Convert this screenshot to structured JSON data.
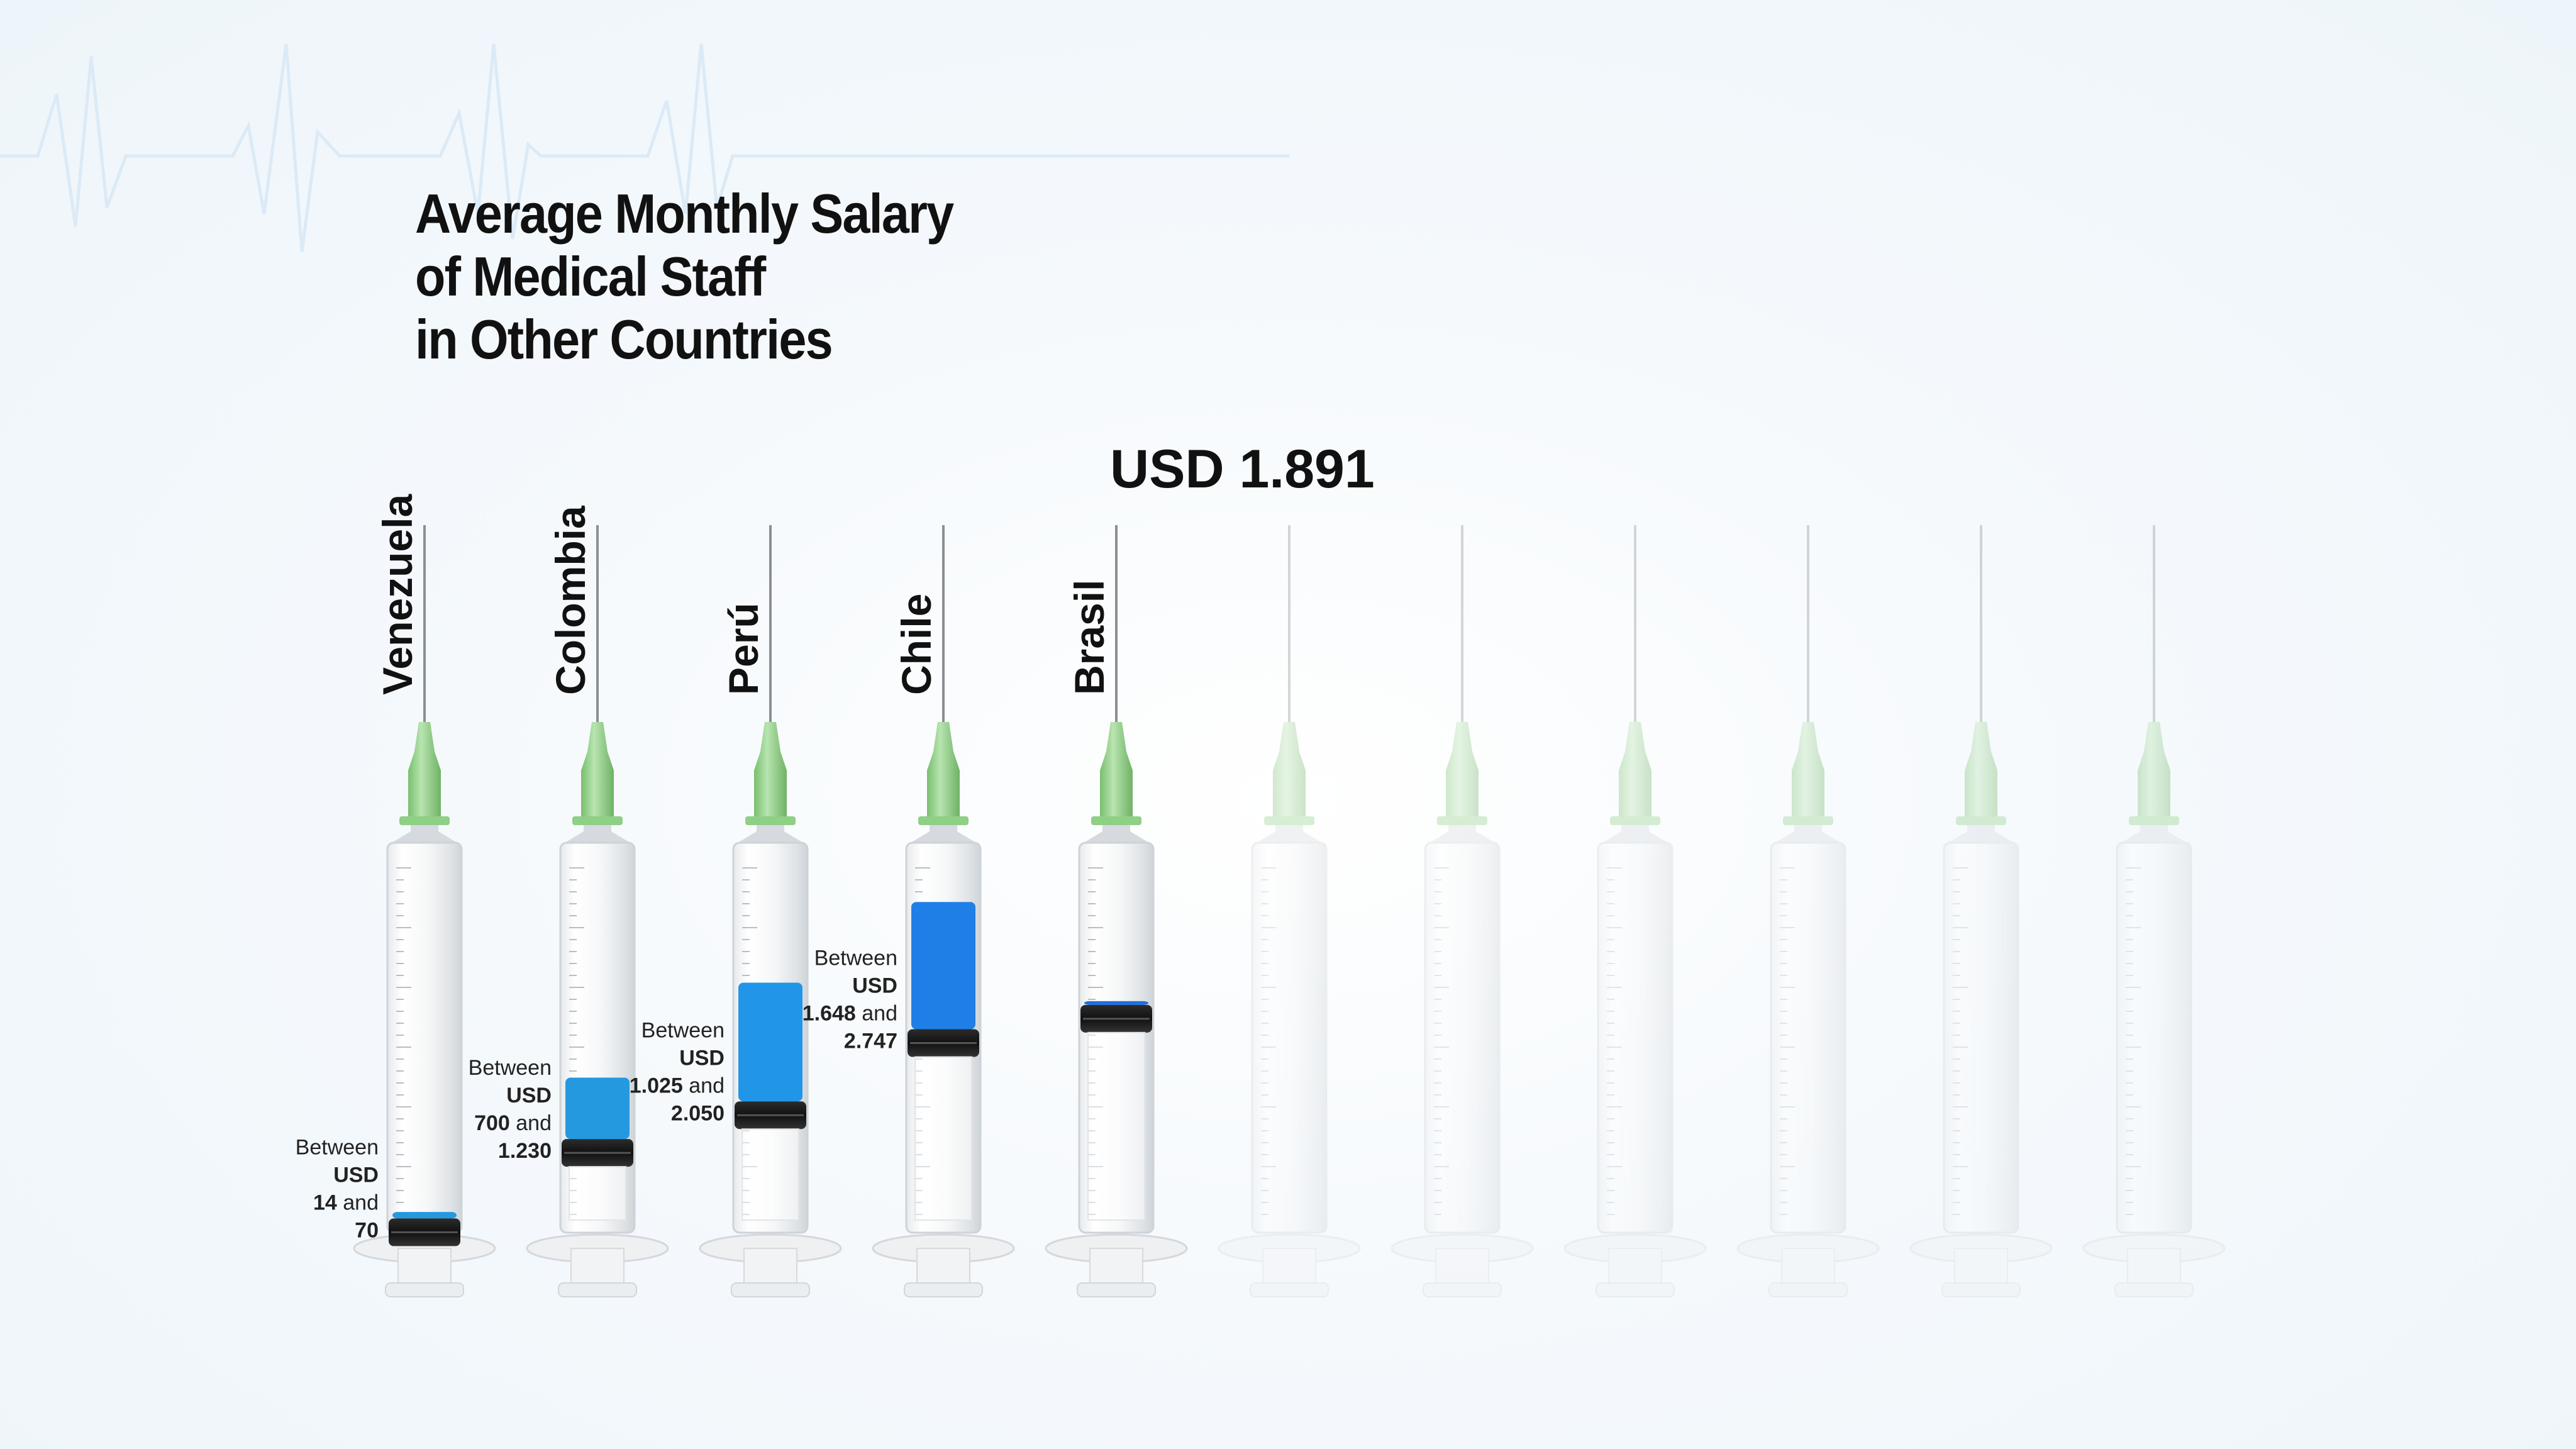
{
  "title_lines": [
    "Average Monthly Salary",
    "of Medical Staff",
    "in Other Countries"
  ],
  "chart_data": {
    "type": "bar",
    "title": "Average Monthly Salary of Medical Staff in Other Countries",
    "categories": [
      "Venezuela",
      "Colombia",
      "Perú",
      "Chile",
      "Brasil"
    ],
    "series": [
      {
        "values": [
          14,
          700,
          1025,
          1648,
          1891
        ]
      },
      {
        "values": [
          70,
          1230,
          2050,
          2747,
          1891
        ]
      }
    ],
    "range_labels": [
      [
        "Between",
        "USD",
        "14 and",
        "70"
      ],
      [
        "Between",
        "USD",
        "700 and",
        "1.230"
      ],
      [
        "Between",
        "USD",
        "1.025 and",
        "2.050"
      ],
      [
        "Between",
        "USD",
        "1.648 and",
        "2.747"
      ]
    ],
    "callout": "USD 1.891",
    "empty_syringes": 6,
    "ylim": [
      0,
      3150
    ],
    "colors": {
      "liquid": [
        "#2599e0",
        "#2599e0",
        "#2196e8",
        "#1f7fe6",
        "#1f6fe0"
      ],
      "hub": "#8fcf86",
      "plunger": "#1e1e1e"
    }
  }
}
